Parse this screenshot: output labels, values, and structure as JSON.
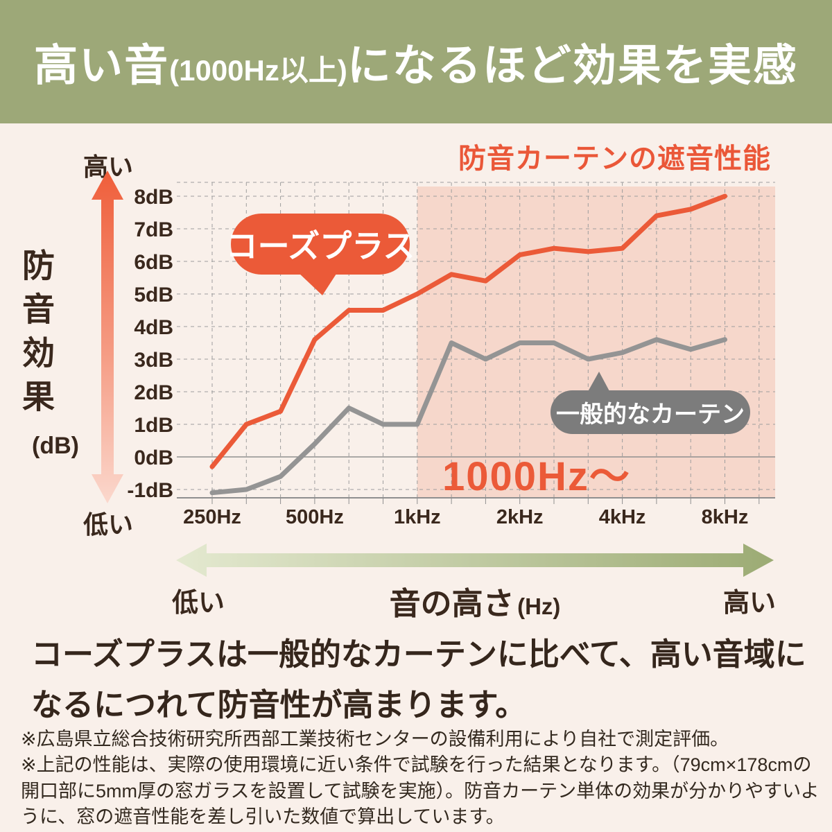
{
  "colors": {
    "page_bg": "#F9F0EA",
    "header_bg": "#9DA878",
    "accent_orange": "#EB5A38",
    "gray_line": "#949494",
    "gray_bubble": "#7C7C7C",
    "pink_region": "#F6D7CB",
    "grid": "#9D9D9D",
    "axis": "#8F8F8F",
    "text_dark": "#3A281D",
    "green_arrow_light": "#E4E9D0",
    "green_arrow_dark": "#9CAB74",
    "v_arrow_top": "#EF5E3A",
    "v_arrow_bottom": "#FBD8CD"
  },
  "header": {
    "title_prefix": "高い音",
    "title_paren": "(1000Hz以上)",
    "title_suffix": "になるほど効果を実感"
  },
  "chart": {
    "title": "防音カーテンの遮音性能",
    "y_axis": {
      "high": "高い",
      "low": "低い",
      "label": "防音効果",
      "unit": "(dB)"
    },
    "x_axis": {
      "low": "低い",
      "label": "音の高さ",
      "unit": "(Hz)",
      "high": "高い"
    },
    "bubbles": {
      "orange": "コーズプラス",
      "gray": "一般的なカーテン"
    },
    "highlight_label": "1000Hz〜"
  },
  "chart_data": {
    "type": "line",
    "title": "防音カーテンの遮音性能",
    "xlabel": "音の高さ (Hz)",
    "ylabel": "防音効果 (dB)",
    "x_hz": [
      250,
      315,
      400,
      500,
      630,
      800,
      1000,
      1250,
      1600,
      2000,
      2500,
      3150,
      4000,
      5000,
      6300,
      8000
    ],
    "x_tick_labels": [
      {
        "index": 0,
        "label": "250Hz"
      },
      {
        "index": 3,
        "label": "500Hz"
      },
      {
        "index": 6,
        "label": "1kHz"
      },
      {
        "index": 9,
        "label": "2kHz"
      },
      {
        "index": 12,
        "label": "4kHz"
      },
      {
        "index": 15,
        "label": "8kHz"
      }
    ],
    "y_ticks_db": [
      8,
      7,
      6,
      5,
      4,
      3,
      2,
      1,
      0,
      -1
    ],
    "ylim": [
      -1.5,
      8.5
    ],
    "grid": "dashed 1/3-octave vertical, 1dB horizontal, solid 0dB line",
    "legend_position": "speech bubbles on plot",
    "highlight_region": {
      "from_hz": 1000,
      "label": "1000Hz〜",
      "color": "#F6D7CB"
    },
    "series": [
      {
        "name": "コーズプラス",
        "color": "#EB5A38",
        "values": [
          -0.3,
          1.0,
          1.4,
          3.6,
          4.5,
          4.5,
          5.0,
          5.6,
          5.4,
          6.2,
          6.4,
          6.3,
          6.4,
          7.4,
          7.6,
          8.0
        ]
      },
      {
        "name": "一般的なカーテン",
        "color": "#949494",
        "values": [
          -1.1,
          -1.0,
          -0.6,
          0.4,
          1.5,
          1.0,
          1.0,
          3.5,
          3.0,
          3.5,
          3.5,
          3.0,
          3.2,
          3.6,
          3.3,
          3.6
        ]
      }
    ]
  },
  "description": "コーズプラスは一般的なカーテンに比べて、高い音域になるにつれて防音性が高まります。",
  "footnotes": [
    "※広島県立総合技術研究所西部工業技術センターの設備利用により自社で測定評価。",
    "※上記の性能は、実際の使用環境に近い条件で試験を行った結果となります。（79cm×178cmの開口部に5mm厚の窓ガラスを設置して試験を実施）。防音カーテン単体の効果が分かりやすいように、窓の遮音性能を差し引いた数値で算出しています。"
  ]
}
